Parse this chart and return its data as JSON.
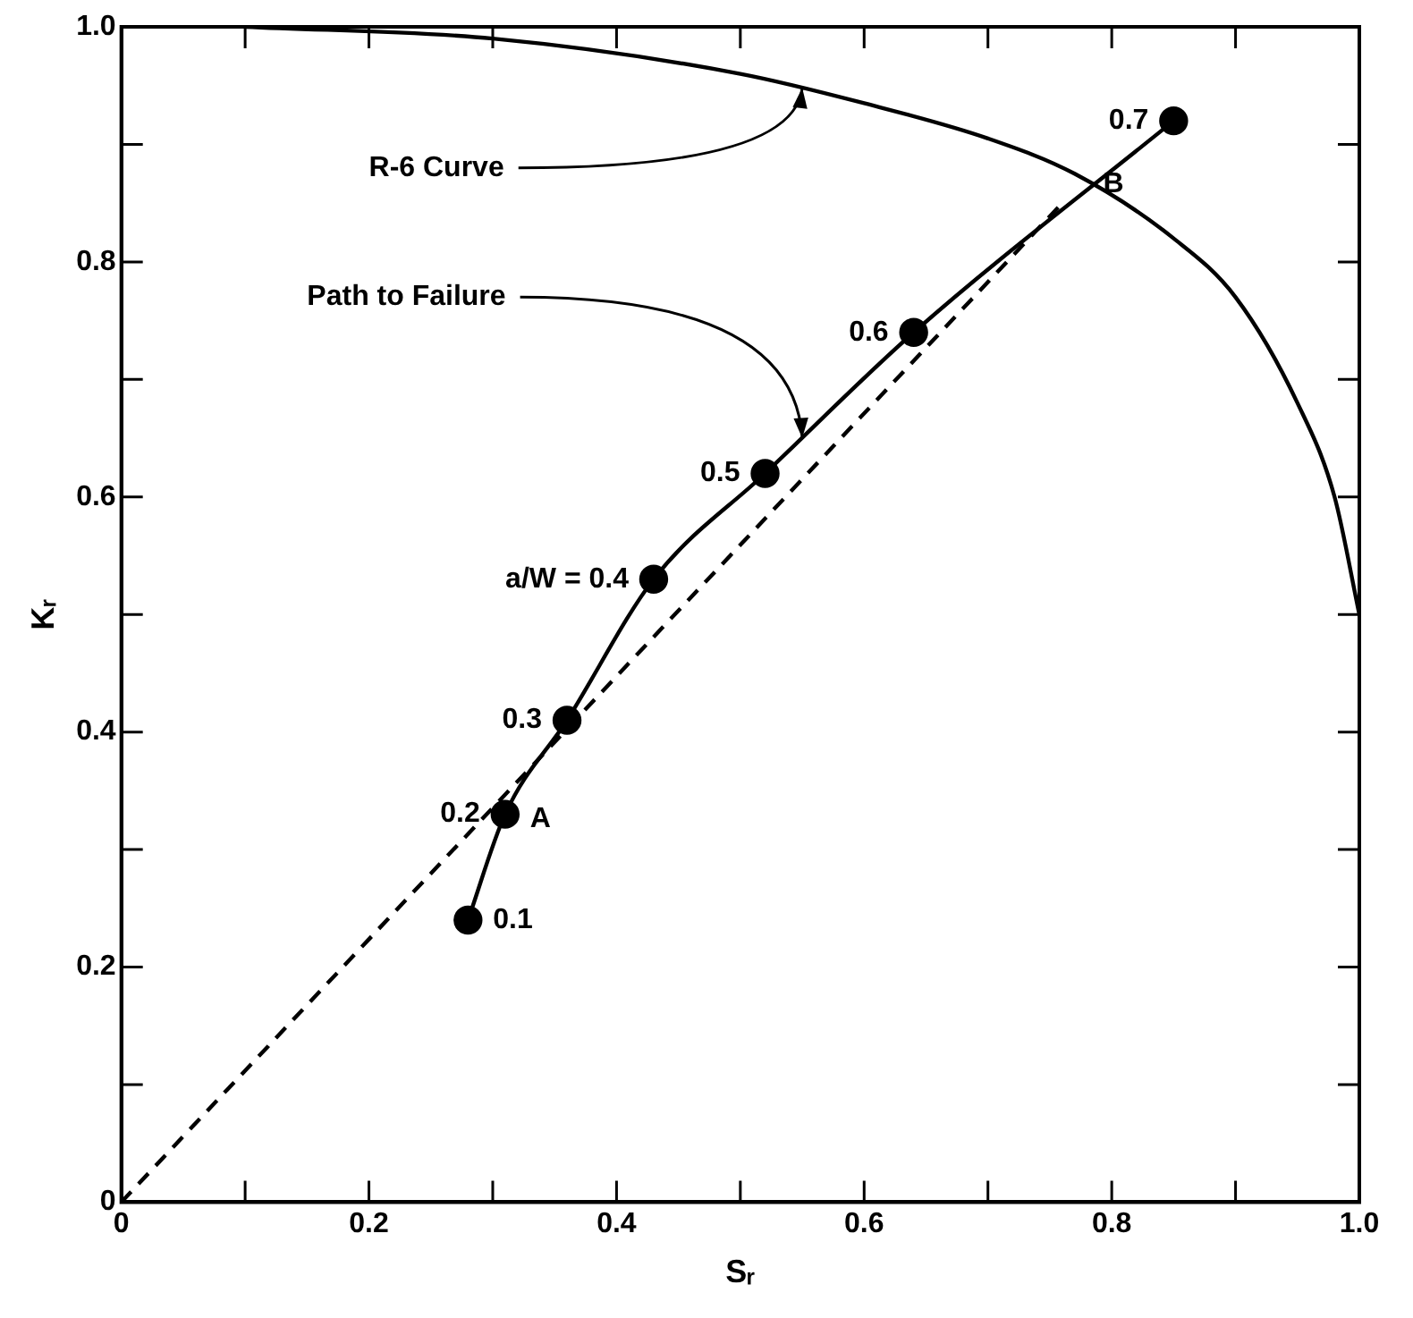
{
  "chart_data": {
    "type": "line",
    "xlabel": "Sᵣ",
    "ylabel": "Kᵣ",
    "xlim": [
      0,
      1
    ],
    "ylim": [
      0,
      1
    ],
    "xticks": [
      0,
      {
        "value": 0.1,
        "label": null
      },
      0.2,
      {
        "value": 0.3,
        "label": null
      },
      0.4,
      {
        "value": 0.5,
        "label": null
      },
      0.6,
      {
        "value": 0.7,
        "label": null
      },
      0.8,
      {
        "value": 0.9,
        "label": null
      },
      {
        "value": 1,
        "label": "1.0"
      }
    ],
    "yticks": [
      0,
      {
        "value": 0.1,
        "label": null
      },
      0.2,
      {
        "value": 0.3,
        "label": null
      },
      0.4,
      {
        "value": 0.5,
        "label": null
      },
      0.6,
      {
        "value": 0.7,
        "label": null
      },
      0.8,
      {
        "value": 0.9,
        "label": null
      },
      {
        "value": 1,
        "label": "1.0"
      }
    ],
    "grid": false,
    "legend": false,
    "series": [
      {
        "type": "line",
        "color": "#000000",
        "marker": "none",
        "line_style": "solid",
        "x": [
          0.1,
          0.3,
          0.5,
          0.6,
          0.7,
          0.77,
          0.85,
          0.9,
          0.95,
          0.98,
          1.0
        ],
        "values": [
          1.0,
          0.99,
          0.96,
          0.935,
          0.905,
          0.875,
          0.82,
          0.77,
          0.68,
          0.6,
          0.5
        ]
      },
      {
        "type": "line",
        "color": "#000000",
        "marker": "circle",
        "line_style": "solid",
        "x": [
          0.28,
          0.31,
          0.36,
          0.43,
          0.52,
          0.64,
          0.85
        ],
        "values": [
          0.24,
          0.33,
          0.41,
          0.53,
          0.62,
          0.74,
          0.92
        ]
      },
      {
        "type": "line",
        "color": "#000000",
        "marker": "none",
        "line_style": "dashed",
        "x": [
          0,
          0.76
        ],
        "values": [
          0,
          0.85
        ]
      }
    ],
    "annotations": [
      {
        "text": "R-6 Curve",
        "x": 0.55,
        "y": 0.948
      },
      {
        "text": "Path to Failure",
        "x": 0.55,
        "y": 0.65
      },
      {
        "text": "B",
        "x": 0.77,
        "y": 0.86
      },
      {
        "text": "A",
        "x": 0.31,
        "y": 0.347
      },
      {
        "text": "0.1",
        "x": 0.28,
        "y": 0.24
      },
      {
        "text": "0.2",
        "x": 0.31,
        "y": 0.33
      },
      {
        "text": "0.3",
        "x": 0.36,
        "y": 0.41
      },
      {
        "text": "a/W = 0.4",
        "x": 0.43,
        "y": 0.53
      },
      {
        "text": "0.5",
        "x": 0.52,
        "y": 0.62
      },
      {
        "text": "0.6",
        "x": 0.64,
        "y": 0.74
      },
      {
        "text": "0.7",
        "x": 0.85,
        "y": 0.92
      }
    ]
  }
}
